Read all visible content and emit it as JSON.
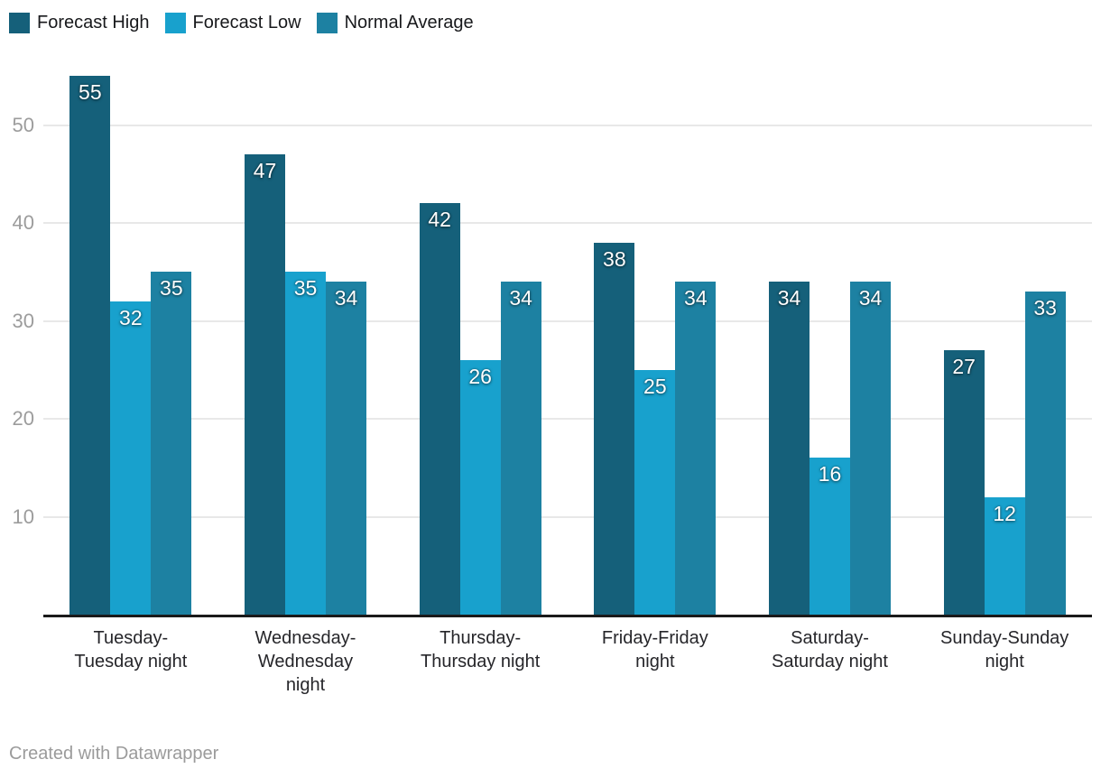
{
  "legend": {
    "items": [
      {
        "label": "Forecast High",
        "color": "#15607a"
      },
      {
        "label": "Forecast Low",
        "color": "#18a1cd"
      },
      {
        "label": "Normal Average",
        "color": "#1d81a2"
      }
    ]
  },
  "chart_data": {
    "type": "bar",
    "title": "",
    "xlabel": "",
    "ylabel": "",
    "categories": [
      "Tuesday-Tuesday night",
      "Wednesday-Wednesday night",
      "Thursday-Thursday night",
      "Friday-Friday night",
      "Saturday-Saturday night",
      "Sunday-Sunday night"
    ],
    "category_label_lines": [
      [
        "Tuesday-",
        "Tuesday night"
      ],
      [
        "Wednesday-",
        "Wednesday",
        "night"
      ],
      [
        "Thursday-",
        "Thursday night"
      ],
      [
        "Friday-Friday",
        "night"
      ],
      [
        "Saturday-",
        "Saturday night"
      ],
      [
        "Sunday-Sunday",
        "night"
      ]
    ],
    "series": [
      {
        "name": "Forecast High",
        "color": "#15607a",
        "values": [
          55,
          47,
          42,
          38,
          34,
          27
        ]
      },
      {
        "name": "Forecast Low",
        "color": "#18a1cd",
        "values": [
          32,
          35,
          26,
          25,
          16,
          12
        ]
      },
      {
        "name": "Normal Average",
        "color": "#1d81a2",
        "values": [
          35,
          34,
          34,
          34,
          34,
          33
        ]
      }
    ],
    "y_ticks": [
      10,
      20,
      30,
      40,
      50
    ],
    "ylim": [
      0,
      56
    ],
    "grid": true,
    "legend_position": "top-left",
    "value_labels": true
  },
  "colors": {
    "gridline": "#e8e8e8",
    "axis_line": "#1a1a1a",
    "y_tick_text": "#9c9c9c",
    "x_label_text": "#26262a",
    "value_label_text": "#ffffff"
  },
  "footer": {
    "attribution": "Created with Datawrapper"
  }
}
